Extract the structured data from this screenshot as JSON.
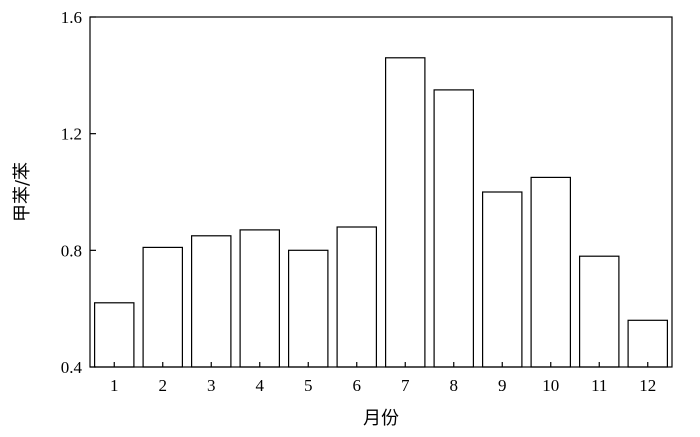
{
  "chart_data": {
    "type": "bar",
    "title": "",
    "xlabel": "月份",
    "ylabel": "甲苯/苯",
    "categories": [
      "1",
      "2",
      "3",
      "4",
      "5",
      "6",
      "7",
      "8",
      "9",
      "10",
      "11",
      "12"
    ],
    "values": [
      0.62,
      0.81,
      0.85,
      0.87,
      0.8,
      0.88,
      1.46,
      1.35,
      1.0,
      1.05,
      0.78,
      0.56
    ],
    "ylim": [
      0.4,
      1.6
    ],
    "yticks": [
      "0.4",
      "0.8",
      "1.2",
      "1.6"
    ],
    "grid": false,
    "legend": "none",
    "bar_fill": "#ffffff",
    "bar_stroke": "#000000"
  }
}
